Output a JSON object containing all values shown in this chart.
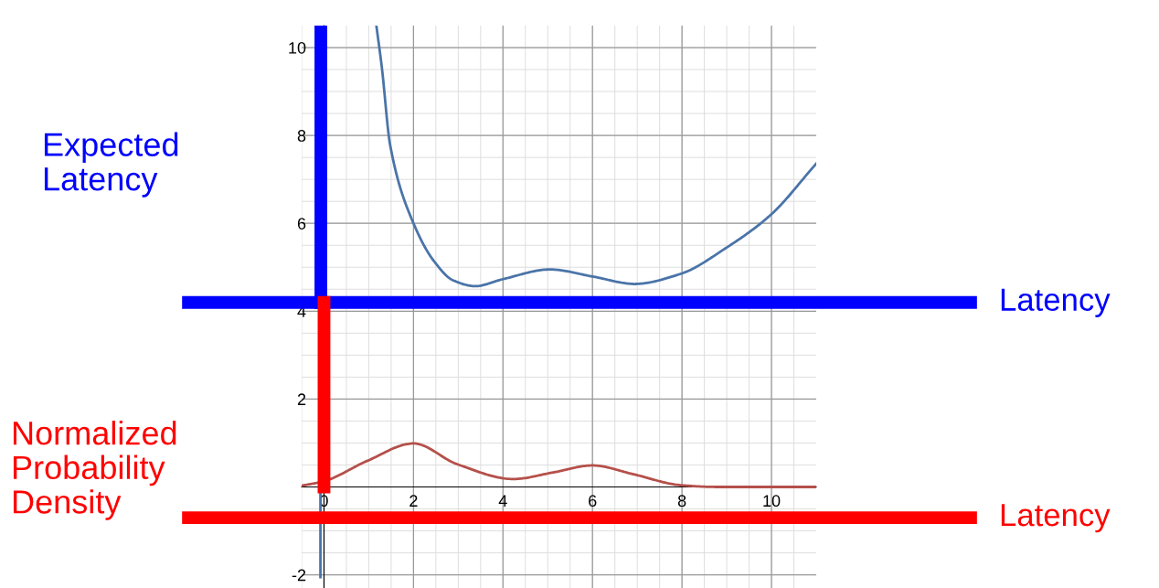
{
  "chart_data": {
    "type": "line",
    "series": [
      {
        "color": "#4a74a8",
        "x": [
          -0.08,
          -0.08,
          null,
          1.17,
          1.29,
          1.48,
          2.0,
          2.45,
          2.89,
          3.38,
          4.0,
          5.05,
          6.0,
          6.94,
          7.97,
          9.0,
          9.98,
          11.0
        ],
        "values": [
          3.95,
          -2.05,
          null,
          10.5,
          9.57,
          7.77,
          6.0,
          5.15,
          4.7,
          4.57,
          4.73,
          4.95,
          4.79,
          4.62,
          4.85,
          5.45,
          6.19,
          7.36
        ]
      },
      {
        "color": "#b5504a",
        "x": [
          -0.49,
          0.0,
          0.96,
          2.0,
          2.97,
          4.23,
          5.12,
          6.0,
          6.91,
          7.97,
          8.77,
          11.0
        ],
        "values": [
          0.03,
          0.13,
          0.59,
          0.99,
          0.52,
          0.18,
          0.33,
          0.49,
          0.29,
          0.04,
          0.0,
          0.0
        ]
      }
    ],
    "xlim": [
      -0.5,
      11
    ],
    "ylim": [
      -2.3,
      10.5
    ],
    "xticks": [
      0,
      2,
      4,
      6,
      8,
      10
    ],
    "yticks": [
      -2,
      2,
      4,
      6,
      8,
      10
    ],
    "grid": true,
    "marker": "none",
    "line_style": "solid",
    "ref_lines": [
      {
        "axis": "y",
        "value": 4.2,
        "label": "Latency",
        "color": "#0000ff"
      },
      {
        "axis": "x",
        "value": -0.07,
        "label": "Expected\nLatency",
        "color": "#0000ff"
      },
      {
        "axis": "x",
        "value": 0.0,
        "label": "Normalized\nProbability\nDensity",
        "color": "#ff0000"
      },
      {
        "axis": "y",
        "value": -0.7,
        "label": "Latency",
        "color": "#ff0000"
      }
    ]
  }
}
